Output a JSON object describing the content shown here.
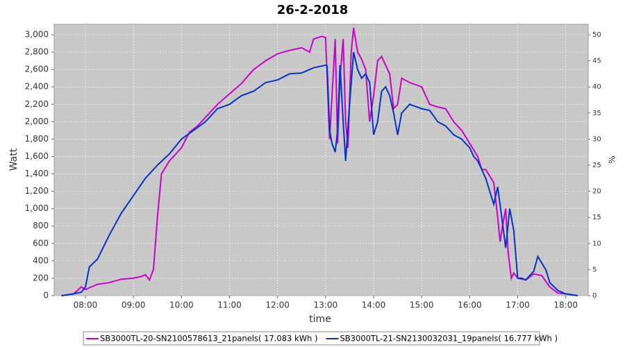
{
  "chart_data": {
    "type": "line",
    "title": "26-2-2018",
    "xlabel": "time",
    "ylabel": "Watt",
    "y2label": "%",
    "xlim": [
      "07:21",
      "18:28"
    ],
    "xticks": [
      "08:00",
      "09:00",
      "10:00",
      "11:00",
      "12:00",
      "13:00",
      "14:00",
      "15:00",
      "16:00",
      "17:00",
      "18:00"
    ],
    "ylim": [
      0,
      3120
    ],
    "yticks": [
      0,
      200,
      400,
      600,
      800,
      {
        "value": 1000,
        "label": "1,000"
      },
      {
        "value": 1200,
        "label": "1,200"
      },
      {
        "value": 1400,
        "label": "1,400"
      },
      {
        "value": 1600,
        "label": "1,600"
      },
      {
        "value": 1800,
        "label": "1,800"
      },
      {
        "value": 2000,
        "label": "2,000"
      },
      {
        "value": 2200,
        "label": "2,200"
      },
      {
        "value": 2400,
        "label": "2,400"
      },
      {
        "value": 2600,
        "label": "2,600"
      },
      {
        "value": 2800,
        "label": "2,800"
      },
      {
        "value": 3000,
        "label": "3,000"
      }
    ],
    "y2lim": [
      0,
      52
    ],
    "y2ticks": [
      0,
      5,
      10,
      15,
      20,
      25,
      30,
      35,
      40,
      45,
      50
    ],
    "grid": true,
    "legend": "bottom",
    "series": [
      {
        "name": "SB3000TL-20-SN2100578613_21panels( 17.083 kWh )",
        "color": "#cc00cc",
        "x": [
          "07:30",
          "07:45",
          "07:55",
          "08:00",
          "08:15",
          "08:30",
          "08:45",
          "09:00",
          "09:10",
          "09:15",
          "09:20",
          "09:25",
          "09:30",
          "09:35",
          "09:45",
          "10:00",
          "10:10",
          "10:20",
          "10:30",
          "10:45",
          "11:00",
          "11:15",
          "11:30",
          "11:45",
          "12:00",
          "12:15",
          "12:30",
          "12:40",
          "12:45",
          "12:55",
          "13:00",
          "13:02",
          "13:05",
          "13:08",
          "13:12",
          "13:15",
          "13:18",
          "13:22",
          "13:25",
          "13:28",
          "13:32",
          "13:35",
          "13:40",
          "13:45",
          "13:50",
          "13:55",
          "14:00",
          "14:05",
          "14:10",
          "14:20",
          "14:25",
          "14:30",
          "14:35",
          "14:45",
          "15:00",
          "15:10",
          "15:20",
          "15:30",
          "15:40",
          "15:50",
          "16:00",
          "16:10",
          "16:15",
          "16:20",
          "16:30",
          "16:35",
          "16:38",
          "16:40",
          "16:45",
          "16:48",
          "16:52",
          "16:55",
          "17:00",
          "17:10",
          "17:20",
          "17:30",
          "17:40",
          "17:50",
          "18:00",
          "18:15"
        ],
        "values": [
          0,
          20,
          100,
          70,
          130,
          150,
          190,
          200,
          220,
          240,
          180,
          300,
          900,
          1400,
          1550,
          1700,
          1880,
          1950,
          2050,
          2200,
          2320,
          2440,
          2600,
          2700,
          2780,
          2820,
          2850,
          2800,
          2950,
          2980,
          2970,
          2500,
          1800,
          2300,
          2950,
          1750,
          2500,
          2950,
          2000,
          1700,
          2800,
          3080,
          2800,
          2720,
          2600,
          2000,
          2300,
          2700,
          2750,
          2550,
          2150,
          2200,
          2500,
          2450,
          2400,
          2200,
          2170,
          2150,
          2000,
          1900,
          1750,
          1600,
          1450,
          1450,
          1300,
          900,
          620,
          750,
          1000,
          500,
          200,
          260,
          200,
          180,
          250,
          230,
          100,
          30,
          20,
          0
        ]
      },
      {
        "name": "SB3000TL-21-SN2130032031_19panels( 16.777 kWh )",
        "color": "#0033cc",
        "x": [
          "07:30",
          "07:45",
          "07:55",
          "08:00",
          "08:05",
          "08:15",
          "08:30",
          "08:45",
          "09:00",
          "09:15",
          "09:30",
          "09:45",
          "10:00",
          "10:15",
          "10:30",
          "10:45",
          "11:00",
          "11:15",
          "11:30",
          "11:45",
          "12:00",
          "12:15",
          "12:30",
          "12:40",
          "12:45",
          "13:00",
          "13:02",
          "13:05",
          "13:08",
          "13:12",
          "13:15",
          "13:18",
          "13:22",
          "13:25",
          "13:30",
          "13:35",
          "13:40",
          "13:45",
          "13:50",
          "13:55",
          "14:00",
          "14:05",
          "14:10",
          "14:15",
          "14:20",
          "14:25",
          "14:30",
          "14:35",
          "14:45",
          "15:00",
          "15:10",
          "15:20",
          "15:30",
          "15:40",
          "15:50",
          "16:00",
          "16:05",
          "16:10",
          "16:15",
          "16:20",
          "16:30",
          "16:35",
          "16:40",
          "16:45",
          "16:50",
          "16:55",
          "17:00",
          "17:05",
          "17:10",
          "17:20",
          "17:25",
          "17:35",
          "17:40",
          "17:50",
          "18:00",
          "18:15"
        ],
        "values": [
          0,
          20,
          40,
          100,
          330,
          420,
          700,
          950,
          1150,
          1350,
          1500,
          1630,
          1800,
          1900,
          2000,
          2150,
          2200,
          2300,
          2350,
          2450,
          2480,
          2550,
          2560,
          2600,
          2620,
          2650,
          2640,
          1900,
          1750,
          1650,
          1900,
          2650,
          2000,
          1550,
          2200,
          2800,
          2600,
          2500,
          2550,
          2450,
          1850,
          2000,
          2350,
          2400,
          2300,
          2100,
          1850,
          2100,
          2200,
          2150,
          2130,
          2000,
          1950,
          1850,
          1800,
          1700,
          1600,
          1550,
          1450,
          1350,
          1050,
          1250,
          900,
          550,
          1000,
          750,
          200,
          200,
          180,
          280,
          450,
          300,
          150,
          60,
          20,
          0
        ]
      }
    ]
  }
}
